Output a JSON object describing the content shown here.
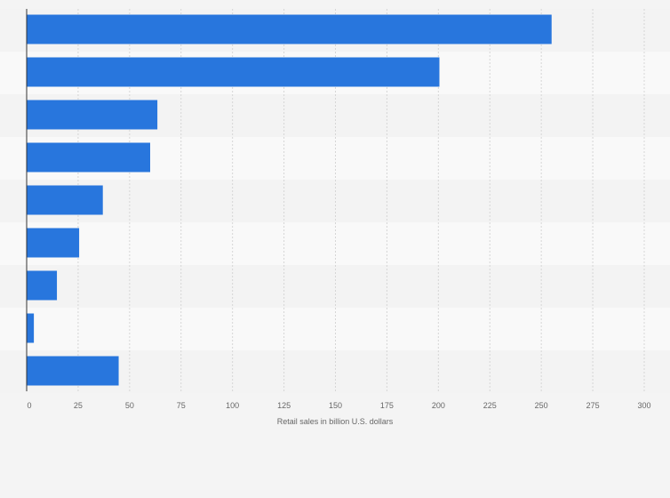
{
  "chart_data": {
    "type": "bar",
    "orientation": "horizontal",
    "categories": [
      "",
      "",
      "",
      "",
      "",
      "",
      "",
      "",
      ""
    ],
    "values": [
      255,
      200.5,
      63.5,
      60,
      37,
      25.5,
      14.7,
      3.5,
      44.7
    ],
    "title": "",
    "xlabel": "Retail sales in billion U.S. dollars",
    "ylabel": "",
    "xlim": [
      0,
      300
    ],
    "xticks": [
      0,
      25,
      50,
      75,
      100,
      125,
      150,
      175,
      200,
      225,
      250,
      275,
      300
    ],
    "grid": true,
    "legend": "none",
    "bar_color": "#2876dd"
  }
}
